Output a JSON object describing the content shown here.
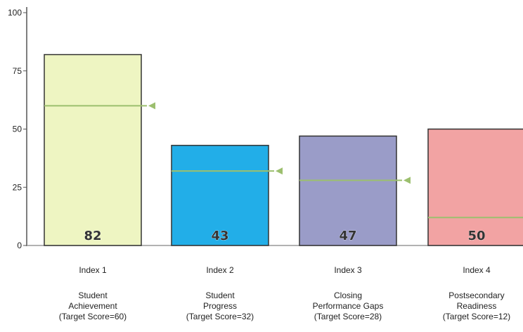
{
  "chart_data": {
    "type": "bar",
    "title": "",
    "xlabel": "",
    "ylabel": "",
    "ylim": [
      0,
      100
    ],
    "yticks": [
      "0",
      "25",
      "50",
      "75",
      "100"
    ],
    "categories": [
      {
        "index": "Index 1",
        "name_lines": [
          "Student",
          "Achievement"
        ],
        "target_label": "(Target Score=60)"
      },
      {
        "index": "Index 2",
        "name_lines": [
          "Student",
          "Progress"
        ],
        "target_label": "(Target Score=32)"
      },
      {
        "index": "Index 3",
        "name_lines": [
          "Closing",
          "Performance Gaps"
        ],
        "target_label": "(Target Score=28)"
      },
      {
        "index": "Index 4",
        "name_lines": [
          "Postsecondary",
          "Readiness"
        ],
        "target_label": "(Target Score=12)"
      }
    ],
    "values": [
      82,
      43,
      47,
      50
    ],
    "value_labels": [
      "82",
      "43",
      "47",
      "50"
    ],
    "targets": [
      60,
      32,
      28,
      12
    ],
    "colors": [
      "#eef5c2",
      "#22aee8",
      "#9a9cc8",
      "#f2a3a3"
    ],
    "target_color": "#9cbf6e"
  }
}
